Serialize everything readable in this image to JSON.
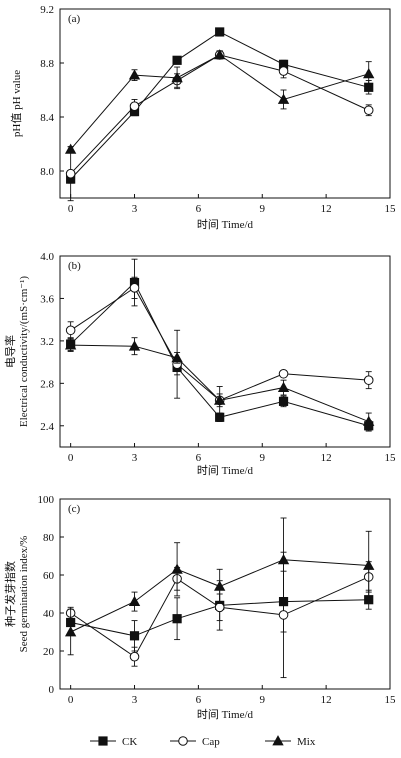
{
  "chart_data": [
    {
      "type": "line",
      "panel_label": "(a)",
      "ylabel": [
        "pH值 pH value"
      ],
      "xlabel": "时间 Time/d",
      "xlim": [
        -0.5,
        15
      ],
      "ylim": [
        7.8,
        9.2
      ],
      "xticks": [
        0,
        3,
        6,
        9,
        12,
        15
      ],
      "yticks": [
        8.0,
        8.4,
        8.8,
        9.2
      ],
      "ytick_labels": [
        "8.0",
        "8.4",
        "8.8",
        "9.2"
      ],
      "series": [
        {
          "name": "CK",
          "x": [
            0,
            3,
            5,
            7,
            10,
            14
          ],
          "y": [
            7.94,
            8.44,
            8.82,
            9.03,
            8.79,
            8.62
          ],
          "err": [
            0.03,
            0.03,
            0.02,
            0.02,
            0.03,
            0.05
          ]
        },
        {
          "name": "Cap",
          "x": [
            0,
            3,
            5,
            7,
            10,
            14
          ],
          "y": [
            7.98,
            8.48,
            8.67,
            8.86,
            8.74,
            8.45
          ],
          "err": [
            0.2,
            0.05,
            0.05,
            0.03,
            0.05,
            0.04
          ]
        },
        {
          "name": "Mix",
          "x": [
            0,
            3,
            5,
            7,
            10,
            14
          ],
          "y": [
            8.16,
            8.71,
            8.69,
            8.86,
            8.53,
            8.72
          ],
          "err": [
            0.02,
            0.04,
            0.08,
            0.03,
            0.07,
            0.09
          ]
        }
      ]
    },
    {
      "type": "line",
      "panel_label": "(b)",
      "ylabel": [
        "电导率",
        "Electrical conductivity/(mS·cm⁻¹)"
      ],
      "xlabel": "时间 Time/d",
      "xlim": [
        -0.5,
        15
      ],
      "ylim": [
        2.2,
        4.0
      ],
      "xticks": [
        0,
        3,
        6,
        9,
        12,
        15
      ],
      "yticks": [
        2.4,
        2.8,
        3.2,
        3.6,
        4.0
      ],
      "ytick_labels": [
        "2.4",
        "2.8",
        "3.2",
        "3.6",
        "4.0"
      ],
      "series": [
        {
          "name": "CK",
          "x": [
            0,
            3,
            5,
            7,
            10,
            14
          ],
          "y": [
            3.17,
            3.75,
            2.95,
            2.48,
            2.63,
            2.4
          ],
          "err": [
            0.06,
            0.22,
            0.07,
            0.04,
            0.05,
            0.05
          ]
        },
        {
          "name": "Cap",
          "x": [
            0,
            3,
            5,
            7,
            10,
            14
          ],
          "y": [
            3.3,
            3.7,
            2.98,
            2.64,
            2.89,
            2.83
          ],
          "err": [
            0.08,
            0.1,
            0.32,
            0.06,
            0.03,
            0.08
          ]
        },
        {
          "name": "Mix",
          "x": [
            0,
            3,
            5,
            7,
            10,
            14
          ],
          "y": [
            3.16,
            3.15,
            3.04,
            2.64,
            2.76,
            2.44
          ],
          "err": [
            0.06,
            0.08,
            0.05,
            0.13,
            0.07,
            0.08
          ]
        }
      ]
    },
    {
      "type": "line",
      "panel_label": "(c)",
      "ylabel": [
        "种子发芽指数",
        "Seed germination index/%"
      ],
      "xlabel": "时间 Time/d",
      "xlim": [
        -0.5,
        15
      ],
      "ylim": [
        0,
        100
      ],
      "xticks": [
        0,
        3,
        6,
        9,
        12,
        15
      ],
      "yticks": [
        0,
        20,
        40,
        60,
        80,
        100
      ],
      "ytick_labels": [
        "0",
        "20",
        "40",
        "60",
        "80",
        "100"
      ],
      "series": [
        {
          "name": "CK",
          "x": [
            0,
            3,
            5,
            7,
            10,
            14
          ],
          "y": [
            35,
            28,
            37,
            44,
            46,
            47
          ],
          "err": [
            5,
            8,
            11,
            13,
            16,
            5
          ]
        },
        {
          "name": "Cap",
          "x": [
            0,
            3,
            5,
            7,
            10,
            14
          ],
          "y": [
            40,
            17,
            58,
            43,
            39,
            59
          ],
          "err": [
            3,
            5,
            6,
            7,
            33,
            8
          ]
        },
        {
          "name": "Mix",
          "x": [
            0,
            3,
            5,
            7,
            10,
            14
          ],
          "y": [
            30,
            46,
            63,
            54,
            68,
            65
          ],
          "err": [
            12,
            5,
            14,
            9,
            22,
            18
          ]
        }
      ]
    }
  ],
  "legend": [
    {
      "name": "CK",
      "marker": "square"
    },
    {
      "name": "Cap",
      "marker": "circle"
    },
    {
      "name": "Mix",
      "marker": "triangle"
    }
  ]
}
